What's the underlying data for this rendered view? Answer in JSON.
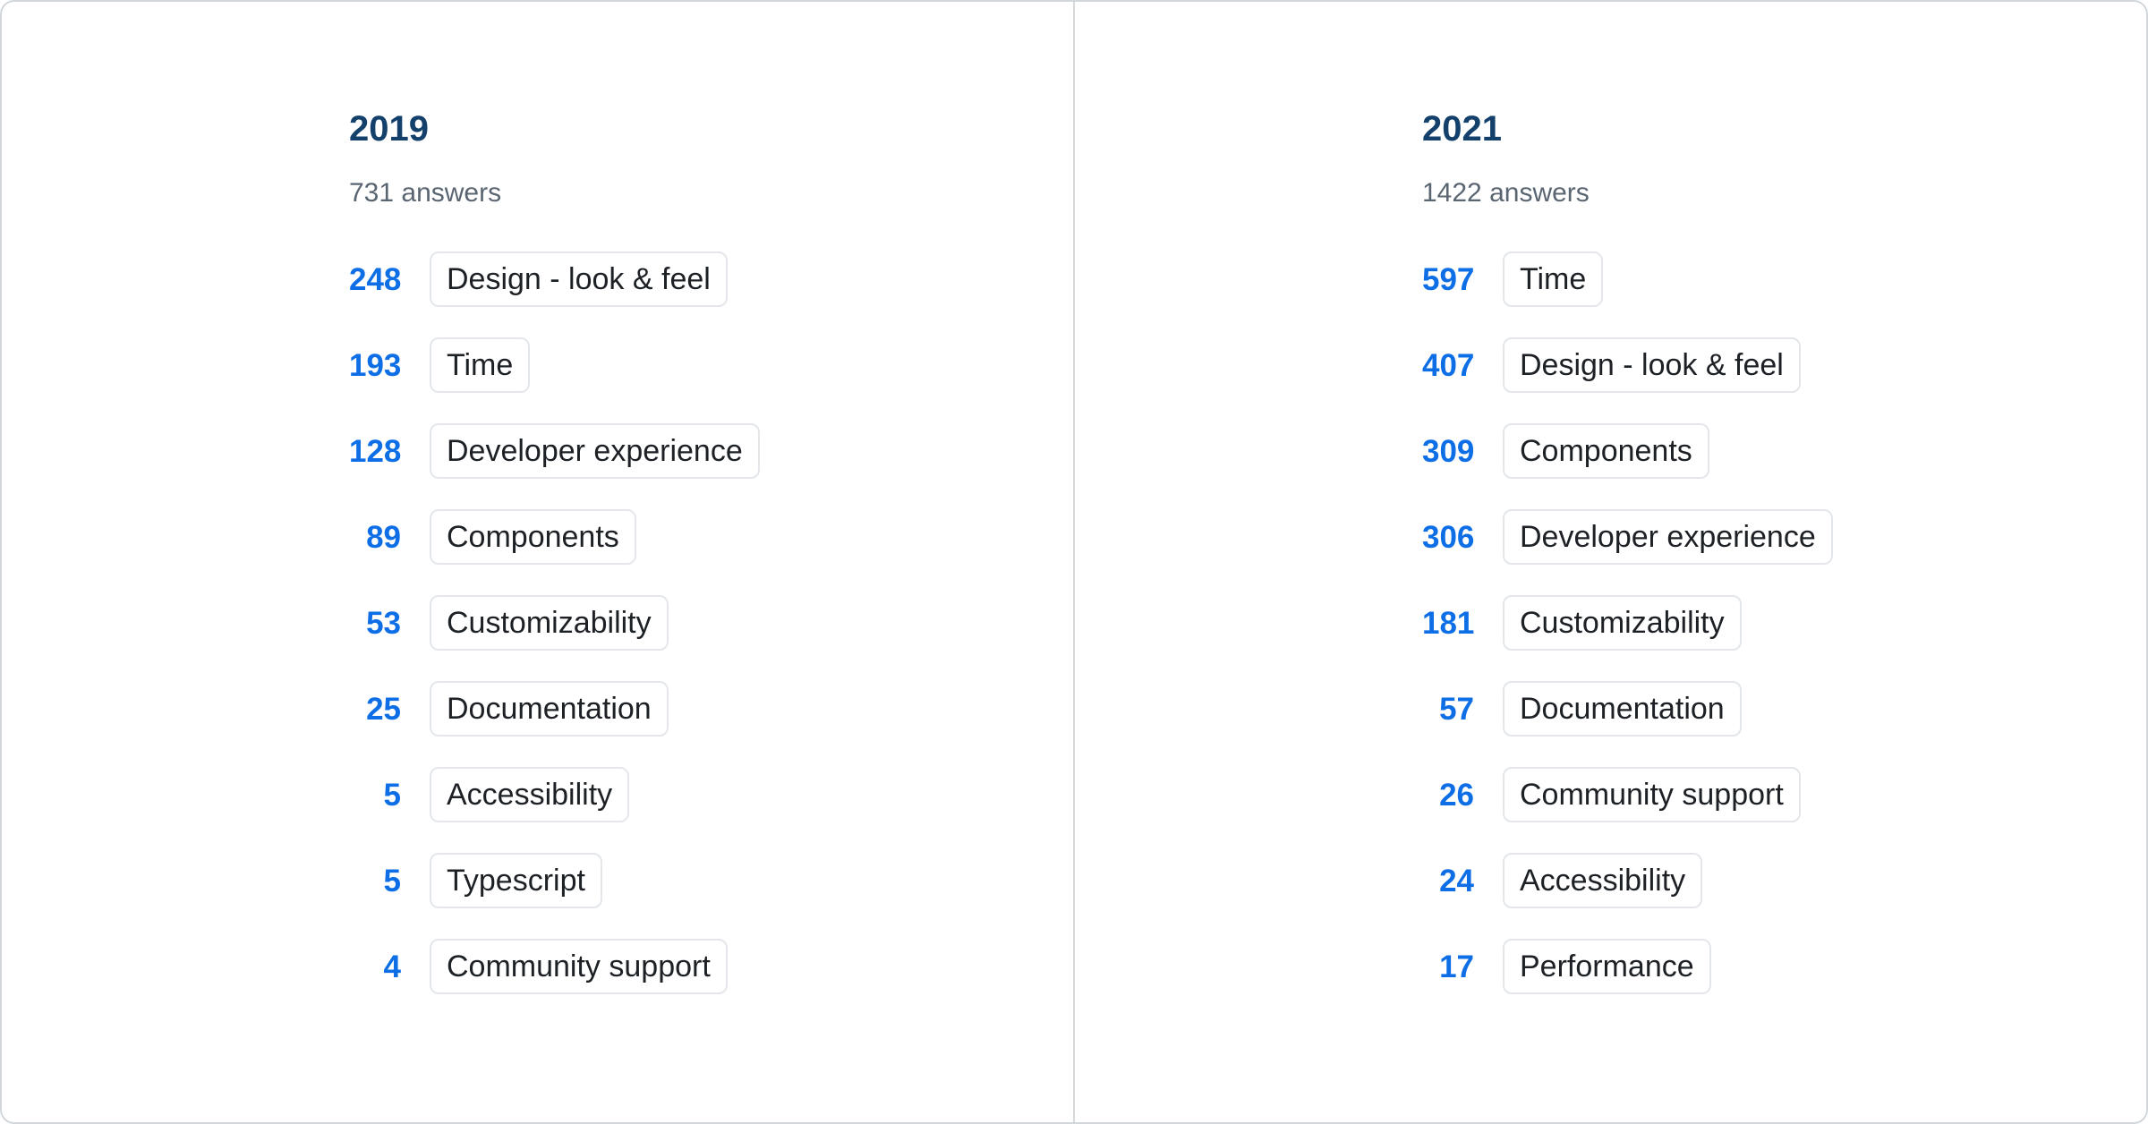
{
  "colors": {
    "year_heading": "#14406c",
    "answers_count_text": "#5a6572",
    "value_blue": "#0d6ee6",
    "chip_border": "#e3e6ea",
    "chip_text": "#1d2126",
    "divider": "#d5d9dd",
    "card_border": "#d3d7dc",
    "card_background": "#ffffff"
  },
  "chart_data": {
    "type": "table",
    "title": "",
    "legend_position": "none",
    "groups": [
      {
        "year": "2019",
        "total_answers": 731,
        "total_label": "731 answers",
        "items": [
          {
            "label": "Design - look & feel",
            "value": 248
          },
          {
            "label": "Time",
            "value": 193
          },
          {
            "label": "Developer experience",
            "value": 128
          },
          {
            "label": "Components",
            "value": 89
          },
          {
            "label": "Customizability",
            "value": 53
          },
          {
            "label": "Documentation",
            "value": 25
          },
          {
            "label": "Accessibility",
            "value": 5
          },
          {
            "label": "Typescript",
            "value": 5
          },
          {
            "label": "Community support",
            "value": 4
          }
        ]
      },
      {
        "year": "2021",
        "total_answers": 1422,
        "total_label": "1422 answers",
        "items": [
          {
            "label": "Time",
            "value": 597
          },
          {
            "label": "Design - look & feel",
            "value": 407
          },
          {
            "label": "Components",
            "value": 309
          },
          {
            "label": "Developer experience",
            "value": 306
          },
          {
            "label": "Customizability",
            "value": 181
          },
          {
            "label": "Documentation",
            "value": 57
          },
          {
            "label": "Community support",
            "value": 26
          },
          {
            "label": "Accessibility",
            "value": 24
          },
          {
            "label": "Performance",
            "value": 17
          }
        ]
      }
    ]
  }
}
